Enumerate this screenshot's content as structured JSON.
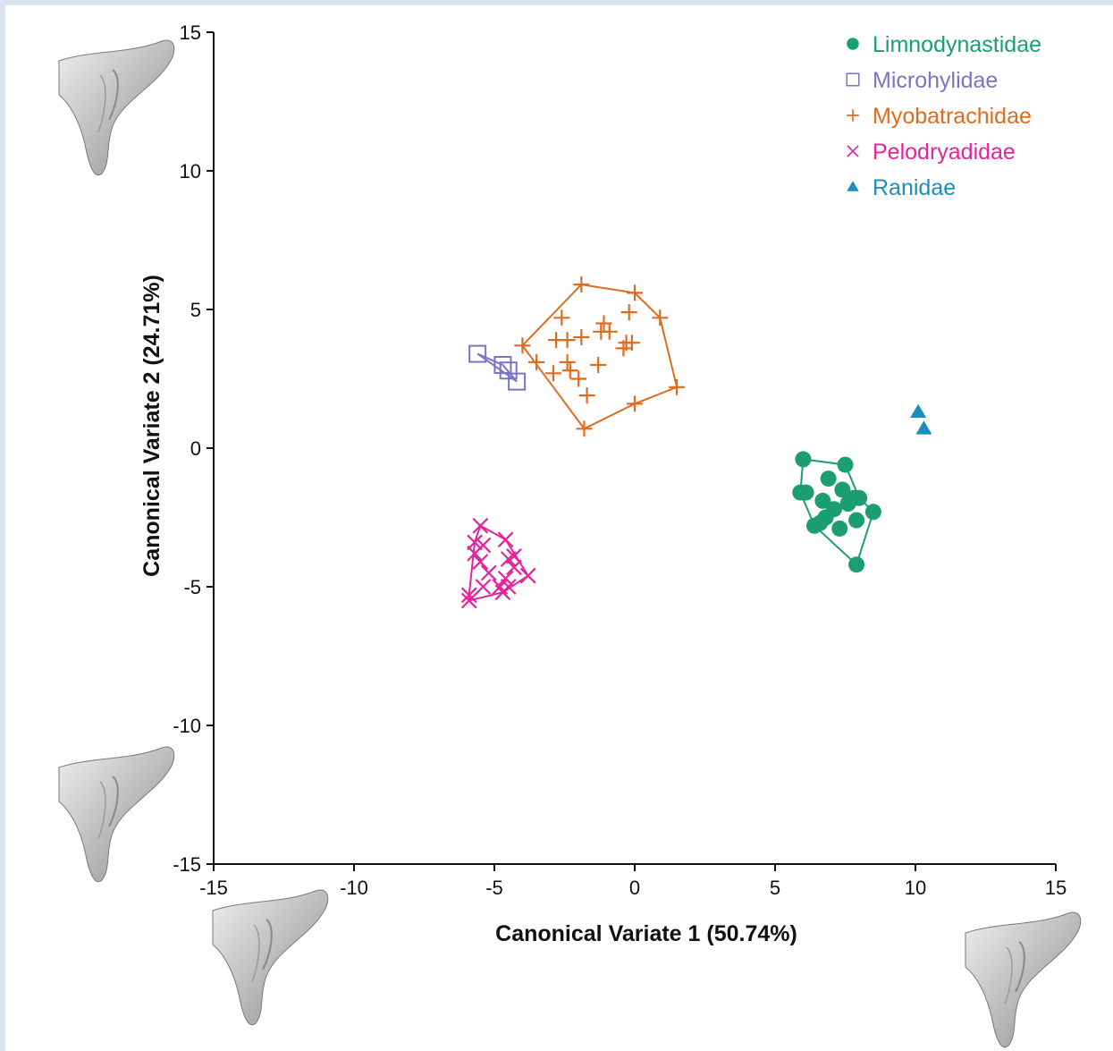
{
  "chart_data": {
    "type": "scatter",
    "xlabel": "Canonical Variate 1 (50.74%)",
    "ylabel": "Canonical Variate 2 (24.71%)",
    "xlim": [
      -15,
      15
    ],
    "ylim": [
      -15,
      15
    ],
    "xticks": [
      -15,
      -10,
      -5,
      0,
      5,
      10,
      15
    ],
    "yticks": [
      -15,
      -10,
      -5,
      0,
      5,
      10,
      15
    ],
    "grid": false,
    "legend_position": "top-right",
    "hulls": true,
    "series": [
      {
        "name": "Limnodynastidae",
        "marker": "circle",
        "color": "#1a9e72",
        "points": [
          [
            6.0,
            -0.4
          ],
          [
            7.5,
            -0.6
          ],
          [
            6.9,
            -1.1
          ],
          [
            5.9,
            -1.6
          ],
          [
            6.1,
            -1.6
          ],
          [
            7.4,
            -1.5
          ],
          [
            7.8,
            -1.8
          ],
          [
            7.6,
            -2.0
          ],
          [
            6.7,
            -1.9
          ],
          [
            8.0,
            -1.8
          ],
          [
            7.1,
            -2.2
          ],
          [
            8.5,
            -2.3
          ],
          [
            6.8,
            -2.5
          ],
          [
            7.9,
            -2.6
          ],
          [
            6.6,
            -2.7
          ],
          [
            6.4,
            -2.8
          ],
          [
            7.3,
            -2.9
          ],
          [
            7.9,
            -4.2
          ]
        ],
        "hull": [
          [
            6.0,
            -0.4
          ],
          [
            7.5,
            -0.6
          ],
          [
            8.0,
            -1.8
          ],
          [
            8.5,
            -2.3
          ],
          [
            7.9,
            -4.2
          ],
          [
            6.4,
            -2.8
          ],
          [
            5.9,
            -1.6
          ]
        ]
      },
      {
        "name": "Microhylidae",
        "marker": "square",
        "color": "#7b74c2",
        "points": [
          [
            -5.6,
            3.4
          ],
          [
            -4.7,
            3.0
          ],
          [
            -4.5,
            2.8
          ],
          [
            -4.2,
            2.4
          ]
        ],
        "hull": [
          [
            -5.6,
            3.4
          ],
          [
            -4.7,
            3.0
          ],
          [
            -4.2,
            2.4
          ]
        ]
      },
      {
        "name": "Myobatrachidae",
        "marker": "plus",
        "color": "#e06b1e",
        "points": [
          [
            -1.9,
            5.9
          ],
          [
            0.0,
            5.6
          ],
          [
            -2.6,
            4.7
          ],
          [
            0.9,
            4.7
          ],
          [
            -0.2,
            4.9
          ],
          [
            -1.1,
            4.5
          ],
          [
            -0.9,
            4.2
          ],
          [
            -1.2,
            4.2
          ],
          [
            -1.9,
            4.0
          ],
          [
            -2.8,
            3.9
          ],
          [
            -2.4,
            3.9
          ],
          [
            -0.3,
            3.8
          ],
          [
            -0.1,
            3.8
          ],
          [
            -0.4,
            3.6
          ],
          [
            -4.0,
            3.7
          ],
          [
            -3.5,
            3.1
          ],
          [
            -2.4,
            3.1
          ],
          [
            -1.3,
            3.0
          ],
          [
            -2.3,
            2.8
          ],
          [
            -2.9,
            2.7
          ],
          [
            -2.0,
            2.5
          ],
          [
            -1.7,
            1.9
          ],
          [
            1.5,
            2.2
          ],
          [
            0.0,
            1.6
          ],
          [
            -1.8,
            0.7
          ]
        ],
        "hull": [
          [
            -1.9,
            5.9
          ],
          [
            0.0,
            5.6
          ],
          [
            0.9,
            4.7
          ],
          [
            1.5,
            2.2
          ],
          [
            0.0,
            1.6
          ],
          [
            -1.8,
            0.7
          ],
          [
            -4.0,
            3.7
          ]
        ]
      },
      {
        "name": "Pelodryadidae",
        "marker": "x",
        "color": "#e4239a",
        "points": [
          [
            -5.5,
            -2.8
          ],
          [
            -5.7,
            -3.4
          ],
          [
            -5.4,
            -3.5
          ],
          [
            -4.6,
            -3.3
          ],
          [
            -5.7,
            -3.8
          ],
          [
            -4.5,
            -4.0
          ],
          [
            -4.3,
            -3.9
          ],
          [
            -5.5,
            -4.1
          ],
          [
            -4.3,
            -4.3
          ],
          [
            -5.2,
            -4.5
          ],
          [
            -4.6,
            -4.7
          ],
          [
            -3.8,
            -4.6
          ],
          [
            -4.8,
            -5.0
          ],
          [
            -4.5,
            -5.0
          ],
          [
            -4.7,
            -5.2
          ],
          [
            -5.4,
            -5.0
          ],
          [
            -5.9,
            -5.3
          ],
          [
            -5.9,
            -5.5
          ]
        ],
        "hull": [
          [
            -5.5,
            -2.8
          ],
          [
            -4.6,
            -3.3
          ],
          [
            -3.8,
            -4.6
          ],
          [
            -4.7,
            -5.2
          ],
          [
            -5.9,
            -5.5
          ],
          [
            -5.9,
            -5.3
          ],
          [
            -5.7,
            -3.4
          ]
        ]
      },
      {
        "name": "Ranidae",
        "marker": "triangle",
        "color": "#1b8dbf",
        "points": [
          [
            10.1,
            1.3
          ],
          [
            10.3,
            0.7
          ]
        ],
        "hull": []
      }
    ]
  }
}
